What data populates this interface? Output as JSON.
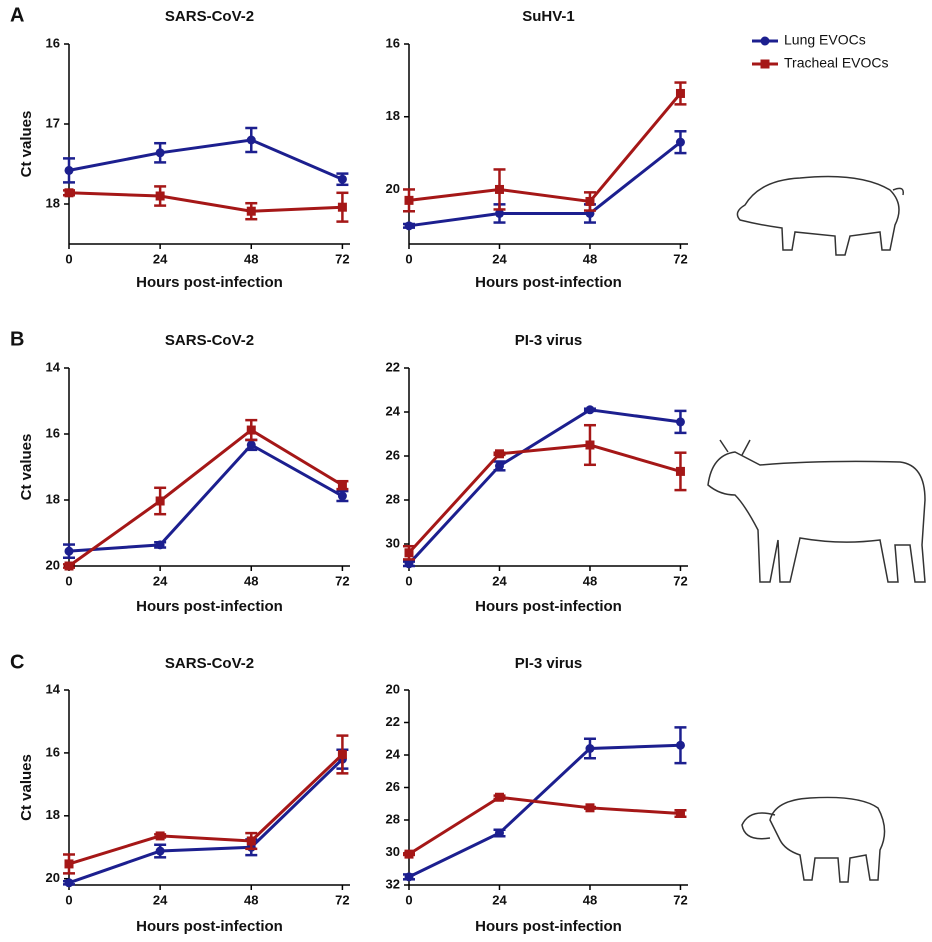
{
  "panel_labels": [
    "A",
    "B",
    "C"
  ],
  "chart_data": [
    {
      "type": "line",
      "title": "SARS-CoV-2",
      "xlabel": "Hours post-infection",
      "ylabel": "Ct values",
      "x": [
        0,
        24,
        48,
        72
      ],
      "xlim": [
        0,
        74
      ],
      "xticks": [
        0,
        24,
        48,
        72
      ],
      "ylim": [
        16,
        18.5
      ],
      "yticks": [
        16,
        17,
        18
      ],
      "y_inverted": true,
      "series": [
        {
          "name": "Lung EVOCs",
          "color": "#1c1f8f",
          "marker": "circle",
          "values": [
            17.58,
            17.36,
            17.2,
            17.69
          ],
          "errors": [
            0.15,
            0.12,
            0.15,
            0.07
          ]
        },
        {
          "name": "Tracheal EVOCs",
          "color": "#a51717",
          "marker": "square",
          "values": [
            17.86,
            17.9,
            18.09,
            18.04
          ],
          "errors": [
            0.03,
            0.12,
            0.1,
            0.18
          ]
        }
      ]
    },
    {
      "type": "line",
      "title": "SuHV-1",
      "xlabel": "Hours post-infection",
      "x": [
        0,
        24,
        48,
        72
      ],
      "xlim": [
        0,
        74
      ],
      "xticks": [
        0,
        24,
        48,
        72
      ],
      "ylim": [
        16,
        21.5
      ],
      "yticks": [
        16,
        18,
        20
      ],
      "y_inverted": true,
      "series": [
        {
          "name": "Lung EVOCs",
          "color": "#1c1f8f",
          "marker": "circle",
          "values": [
            21.0,
            20.66,
            20.66,
            18.7
          ],
          "errors": [
            0.05,
            0.25,
            0.25,
            0.3
          ]
        },
        {
          "name": "Tracheal EVOCs",
          "color": "#a51717",
          "marker": "square",
          "values": [
            20.3,
            20.0,
            20.33,
            17.36
          ],
          "errors": [
            0.3,
            0.55,
            0.25,
            0.3
          ]
        }
      ]
    },
    {
      "type": "line",
      "title": "SARS-CoV-2",
      "xlabel": "Hours post-infection",
      "ylabel": "Ct values",
      "x": [
        0,
        24,
        48,
        72
      ],
      "xlim": [
        0,
        74
      ],
      "xticks": [
        0,
        24,
        48,
        72
      ],
      "ylim": [
        14,
        20
      ],
      "yticks": [
        14,
        16,
        18,
        20
      ],
      "y_inverted": true,
      "series": [
        {
          "name": "Lung EVOCs",
          "color": "#1c1f8f",
          "marker": "circle",
          "values": [
            19.55,
            19.36,
            16.33,
            17.88
          ],
          "errors": [
            0.2,
            0.08,
            0.15,
            0.15
          ]
        },
        {
          "name": "Tracheal EVOCs",
          "color": "#a51717",
          "marker": "square",
          "values": [
            20.0,
            18.03,
            15.88,
            17.55
          ],
          "errors": [
            0.05,
            0.4,
            0.3,
            0.12
          ]
        }
      ]
    },
    {
      "type": "line",
      "title": "PI-3 virus",
      "xlabel": "Hours post-infection",
      "x": [
        0,
        24,
        48,
        72
      ],
      "xlim": [
        0,
        74
      ],
      "xticks": [
        0,
        24,
        48,
        72
      ],
      "ylim": [
        22,
        31
      ],
      "yticks": [
        22,
        24,
        26,
        28,
        30
      ],
      "y_inverted": true,
      "series": [
        {
          "name": "Lung EVOCs",
          "color": "#1c1f8f",
          "marker": "circle",
          "values": [
            30.9,
            26.45,
            23.9,
            24.45
          ],
          "errors": [
            0.1,
            0.2,
            0.05,
            0.5
          ]
        },
        {
          "name": "Tracheal EVOCs",
          "color": "#a51717",
          "marker": "square",
          "values": [
            30.4,
            25.9,
            25.5,
            26.7
          ],
          "errors": [
            0.3,
            0.05,
            0.9,
            0.85
          ]
        }
      ]
    },
    {
      "type": "line",
      "title": "SARS-CoV-2",
      "xlabel": "Hours post-infection",
      "ylabel": "Ct values",
      "x": [
        0,
        24,
        48,
        72
      ],
      "xlim": [
        0,
        74
      ],
      "xticks": [
        0,
        24,
        48,
        72
      ],
      "ylim": [
        14,
        20.2
      ],
      "yticks": [
        14,
        16,
        18,
        20
      ],
      "y_inverted": true,
      "series": [
        {
          "name": "Lung EVOCs",
          "color": "#1c1f8f",
          "marker": "circle",
          "values": [
            20.13,
            19.12,
            19.0,
            16.2
          ],
          "errors": [
            0.05,
            0.2,
            0.25,
            0.3
          ]
        },
        {
          "name": "Tracheal EVOCs",
          "color": "#a51717",
          "marker": "square",
          "values": [
            19.53,
            18.64,
            18.8,
            16.05
          ],
          "errors": [
            0.3,
            0.05,
            0.25,
            0.6
          ]
        }
      ]
    },
    {
      "type": "line",
      "title": "PI-3 virus",
      "xlabel": "Hours post-infection",
      "x": [
        0,
        24,
        48,
        72
      ],
      "xlim": [
        0,
        74
      ],
      "xticks": [
        0,
        24,
        48,
        72
      ],
      "ylim": [
        20,
        32
      ],
      "yticks": [
        20,
        22,
        24,
        26,
        28,
        30,
        32
      ],
      "y_inverted": true,
      "series": [
        {
          "name": "Lung EVOCs",
          "color": "#1c1f8f",
          "marker": "circle",
          "values": [
            31.5,
            28.8,
            23.6,
            23.4
          ],
          "errors": [
            0.15,
            0.2,
            0.6,
            1.1
          ]
        },
        {
          "name": "Tracheal EVOCs",
          "color": "#a51717",
          "marker": "square",
          "values": [
            30.1,
            26.6,
            27.25,
            27.6
          ],
          "errors": [
            0.05,
            0.1,
            0.05,
            0.2
          ]
        }
      ]
    }
  ]
}
